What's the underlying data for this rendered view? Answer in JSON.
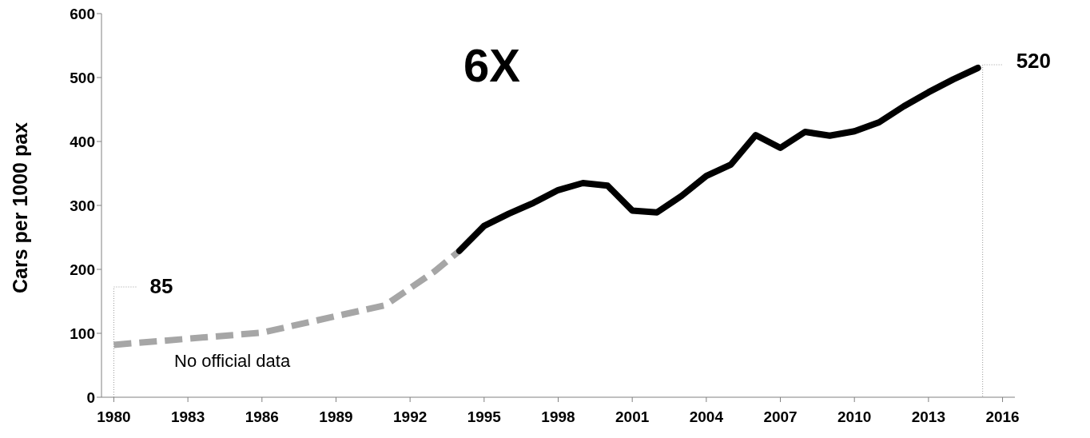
{
  "chart_data": {
    "type": "line",
    "ylabel": "Cars per 1000 pax",
    "marker": "none",
    "xlim": [
      1979.5,
      2016.5
    ],
    "xticks": [
      1980,
      1983,
      1986,
      1989,
      1992,
      1995,
      1998,
      2001,
      2004,
      2007,
      2010,
      2013,
      2016
    ],
    "ylim": [
      0,
      600
    ],
    "yticks": [
      0,
      100,
      200,
      300,
      400,
      500,
      600
    ],
    "series": [
      {
        "color": "#a6a6a6",
        "line_style": "dashed",
        "x": [
          1980,
          1986,
          1991,
          1993,
          1994
        ],
        "values": [
          82,
          101,
          144,
          197,
          229
        ]
      },
      {
        "color": "#000000",
        "line_style": "solid",
        "x": [
          1994,
          1995,
          1996,
          1997,
          1998,
          1999,
          2000,
          2001,
          2002,
          2003,
          2004,
          2005,
          2006,
          2007,
          2008,
          2009,
          2010,
          2011,
          2012,
          2013,
          2014,
          2015
        ],
        "values": [
          229,
          268,
          287,
          304,
          324,
          335,
          331,
          292,
          289,
          315,
          346,
          364,
          410,
          390,
          415,
          409,
          416,
          430,
          455,
          477,
          497,
          515
        ]
      }
    ],
    "annotations": [
      {
        "text": "85",
        "x": 1980,
        "y": 85
      },
      {
        "text": "520",
        "x": 2015,
        "y": 520
      },
      "6X",
      "No official data"
    ]
  }
}
